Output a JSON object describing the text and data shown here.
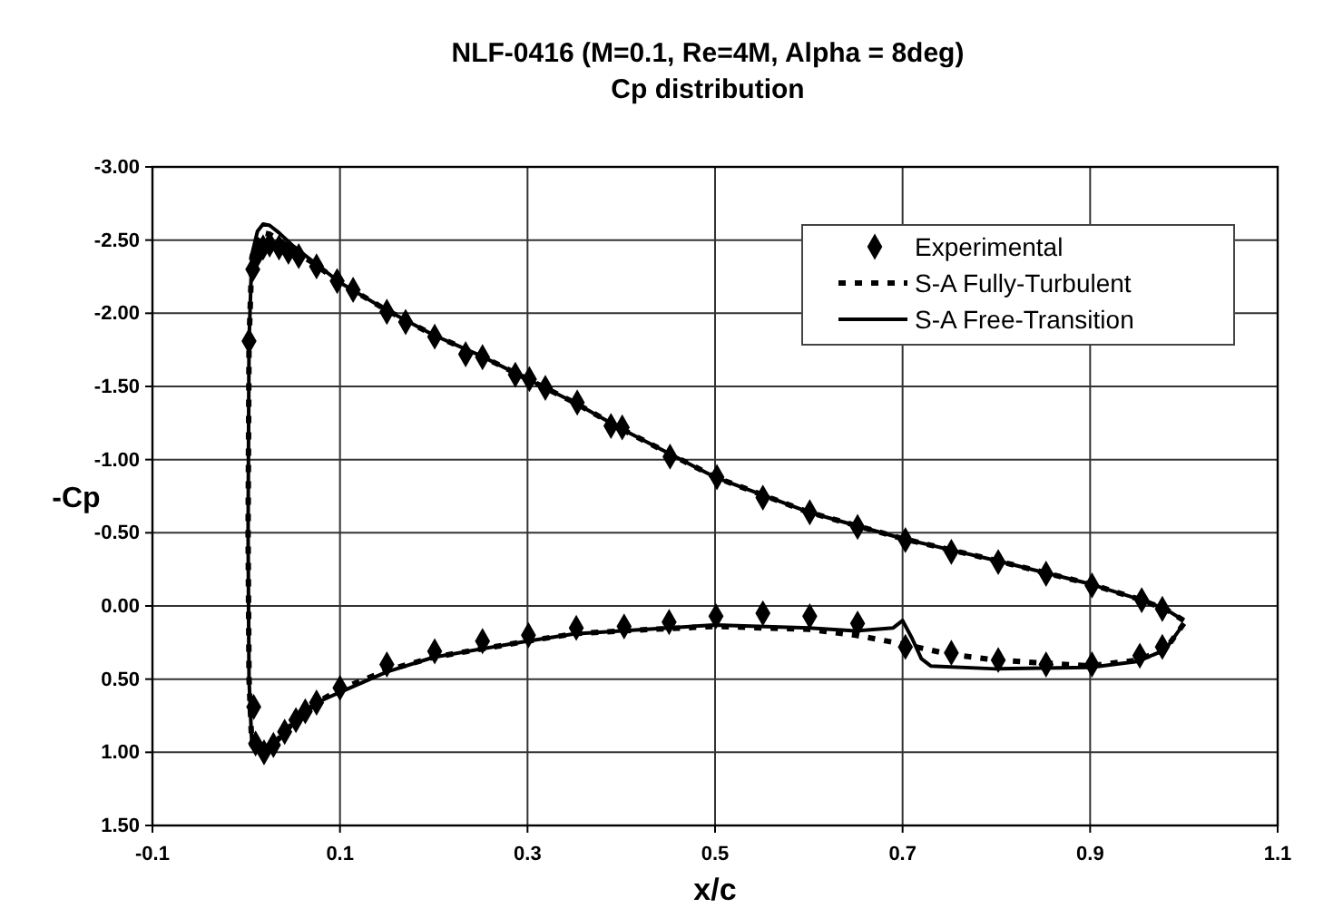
{
  "chart_data": {
    "type": "line",
    "title": "NLF-0416 (M=0.1, Re=4M, Alpha = 8deg)",
    "subtitle": "Cp distribution",
    "xlabel": "x/c",
    "ylabel": "-Cp",
    "xlim": [
      -0.1,
      1.1
    ],
    "xticks": [
      -0.1,
      0.1,
      0.3,
      0.5,
      0.7,
      0.9,
      1.1
    ],
    "ylim": [
      1.5,
      -3.0
    ],
    "yticks": [
      {
        "value": -3.0,
        "label": "-3.00"
      },
      {
        "value": -2.5,
        "label": "-2.50"
      },
      {
        "value": -2.0,
        "label": "-2.00"
      },
      {
        "value": -1.5,
        "label": "-1.50"
      },
      {
        "value": -1.0,
        "label": "-1.00"
      },
      {
        "value": -0.5,
        "label": "-0.50"
      },
      {
        "value": 0,
        "label": "0.00"
      },
      {
        "value": 0.5,
        "label": "0.50"
      },
      {
        "value": 1.0,
        "label": "1.00"
      },
      {
        "value": 1.5,
        "label": "1.50"
      }
    ],
    "grid": true,
    "legend": "top right",
    "series": [
      {
        "name": "Experimental",
        "type": "scatter",
        "marker": "diamond",
        "color": "#000000",
        "x": [
          0.003,
          0.007,
          0.012,
          0.018,
          0.025,
          0.035,
          0.045,
          0.056,
          0.075,
          0.097,
          0.114,
          0.15,
          0.17,
          0.201,
          0.234,
          0.252,
          0.287,
          0.302,
          0.319,
          0.353,
          0.389,
          0.401,
          0.452,
          0.502,
          0.551,
          0.601,
          0.652,
          0.703,
          0.752,
          0.802,
          0.853,
          0.902,
          0.955,
          0.977,
          0.008,
          0.01,
          0.019,
          0.029,
          0.041,
          0.053,
          0.063,
          0.075,
          0.1,
          0.15,
          0.201,
          0.252,
          0.301,
          0.352,
          0.403,
          0.451,
          0.501,
          0.551,
          0.601,
          0.652,
          0.703,
          0.752,
          0.802,
          0.853,
          0.902,
          0.953,
          0.977
        ],
        "values": [
          -1.81,
          -2.3,
          -2.4,
          -2.45,
          -2.47,
          -2.45,
          -2.42,
          -2.39,
          -2.32,
          -2.22,
          -2.16,
          -2.01,
          -1.94,
          -1.84,
          -1.72,
          -1.7,
          -1.58,
          -1.55,
          -1.49,
          -1.39,
          -1.23,
          -1.22,
          -1.02,
          -0.88,
          -0.74,
          -0.64,
          -0.54,
          -0.45,
          -0.37,
          -0.3,
          -0.22,
          -0.14,
          -0.04,
          0.02,
          0.69,
          0.94,
          1.0,
          0.95,
          0.86,
          0.78,
          0.72,
          0.66,
          0.56,
          0.4,
          0.31,
          0.24,
          0.2,
          0.15,
          0.14,
          0.11,
          0.07,
          0.05,
          0.07,
          0.12,
          0.28,
          0.32,
          0.37,
          0.4,
          0.4,
          0.34,
          0.28
        ]
      },
      {
        "name": "S-A Fully-Turbulent",
        "type": "line",
        "line_style": "dashed",
        "color": "#000000",
        "x": [
          1.0,
          0.98,
          0.95,
          0.9,
          0.8,
          0.75,
          0.7,
          0.65,
          0.6,
          0.5,
          0.4,
          0.35,
          0.3,
          0.2,
          0.15,
          0.1,
          0.075,
          0.05,
          0.03,
          0.02,
          0.015,
          0.006,
          0.003,
          0.002,
          0.003,
          0.006,
          0.012,
          0.018,
          0.025,
          0.035,
          0.05,
          0.07,
          0.1,
          0.15,
          0.2,
          0.25,
          0.3,
          0.35,
          0.4,
          0.5,
          0.6,
          0.7,
          0.8,
          0.9,
          0.95,
          0.98,
          1.0
        ],
        "values": [
          0.12,
          0.3,
          0.37,
          0.41,
          0.37,
          0.33,
          0.26,
          0.2,
          0.16,
          0.14,
          0.17,
          0.19,
          0.24,
          0.35,
          0.44,
          0.57,
          0.66,
          0.8,
          0.94,
          1.0,
          1.0,
          0.95,
          0.5,
          -0.5,
          -1.8,
          -2.38,
          -2.5,
          -2.55,
          -2.54,
          -2.5,
          -2.43,
          -2.35,
          -2.21,
          -2.02,
          -1.85,
          -1.71,
          -1.55,
          -1.39,
          -1.21,
          -0.88,
          -0.64,
          -0.46,
          -0.31,
          -0.15,
          -0.05,
          0.02,
          0.1
        ]
      },
      {
        "name": "S-A Free-Transition",
        "type": "line",
        "line_style": "solid",
        "color": "#000000",
        "x": [
          1.0,
          0.98,
          0.95,
          0.9,
          0.8,
          0.73,
          0.72,
          0.71,
          0.7,
          0.69,
          0.65,
          0.6,
          0.5,
          0.4,
          0.35,
          0.3,
          0.2,
          0.15,
          0.1,
          0.075,
          0.05,
          0.03,
          0.02,
          0.015,
          0.006,
          0.003,
          0.002,
          0.003,
          0.006,
          0.012,
          0.018,
          0.025,
          0.035,
          0.05,
          0.07,
          0.1,
          0.15,
          0.2,
          0.25,
          0.3,
          0.35,
          0.4,
          0.5,
          0.6,
          0.7,
          0.8,
          0.9,
          0.95,
          0.98,
          1.0
        ],
        "values": [
          0.12,
          0.3,
          0.38,
          0.42,
          0.43,
          0.41,
          0.36,
          0.22,
          0.1,
          0.15,
          0.17,
          0.15,
          0.13,
          0.17,
          0.19,
          0.24,
          0.35,
          0.45,
          0.59,
          0.66,
          0.8,
          0.94,
          1.0,
          1.0,
          0.95,
          0.5,
          -0.5,
          -1.8,
          -2.4,
          -2.56,
          -2.61,
          -2.6,
          -2.55,
          -2.46,
          -2.36,
          -2.21,
          -2.02,
          -1.85,
          -1.71,
          -1.55,
          -1.39,
          -1.21,
          -0.88,
          -0.64,
          -0.46,
          -0.31,
          -0.15,
          -0.05,
          0.02,
          0.1
        ]
      }
    ]
  }
}
